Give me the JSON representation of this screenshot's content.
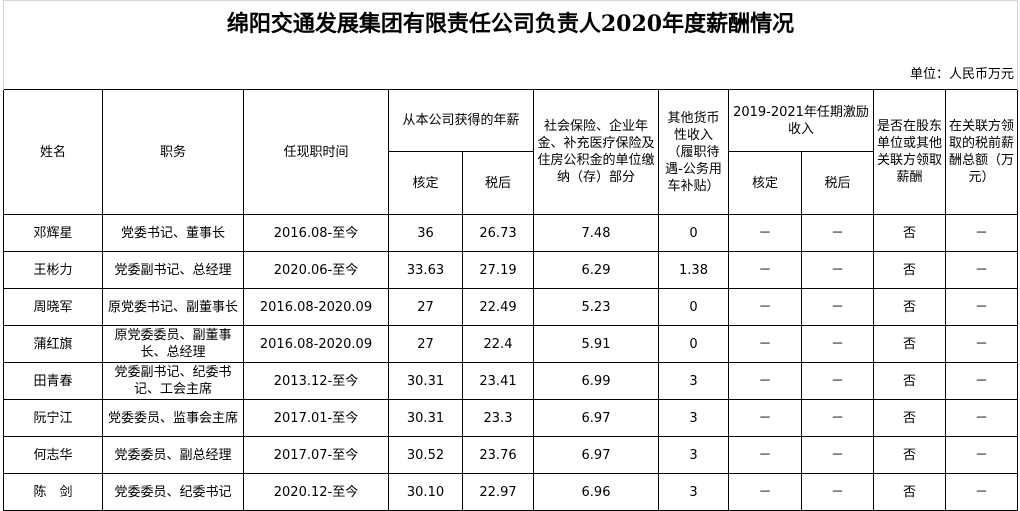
{
  "title": "绵阳交通发展集团有限责任公司负责人2020年度薪酬情况",
  "unit": "单位：人民币万元",
  "header": {
    "top": [
      "姓名",
      "职务",
      "任现职时间",
      "从本公司获得的年薪",
      "社会保险、企业年金、补充医疗保险及住房公积金的单位缴纳（存）部分",
      "其他货币性收入（履职待遇-公务用车补贴）",
      "2019-2021年任期激励收入",
      "是否在股东单位或其他关联方领取薪酬",
      "在关联方领取的税前薪酬总额（万元）"
    ],
    "sub": [
      "核定",
      "税后",
      "核定",
      "税后"
    ]
  },
  "rows": [
    [
      "邓辉星",
      "党委书记、董事长",
      "2016.08-至今",
      "36",
      "26.73",
      "7.48",
      "0",
      "－",
      "－",
      "否",
      "－"
    ],
    [
      "王彬力",
      "党委副书记、总经理",
      "2020.06-至今",
      "33.63",
      "27.19",
      "6.29",
      "1.38",
      "－",
      "－",
      "否",
      "－"
    ],
    [
      "周晓军",
      "原党委书记、副董事长",
      "2016.08-2020.09",
      "27",
      "22.49",
      "5.23",
      "0",
      "－",
      "－",
      "否",
      "－"
    ],
    [
      "蒲红旗",
      "原党委委员、副董事长、总经理",
      "2016.08-2020.09",
      "27",
      "22.4",
      "5.91",
      "0",
      "－",
      "－",
      "否",
      "－"
    ],
    [
      "田青春",
      "党委副书记、纪委书记、工会主席",
      "2013.12-至今",
      "30.31",
      "23.41",
      "6.99",
      "3",
      "－",
      "－",
      "否",
      "－"
    ],
    [
      "阮宁江",
      "党委委员、监事会主席",
      "2017.01-至今",
      "30.31",
      "23.3",
      "6.97",
      "3",
      "－",
      "－",
      "否",
      "－"
    ],
    [
      "何志华",
      "党委委员、副总经理",
      "2017.07-至今",
      "30.52",
      "23.76",
      "6.97",
      "3",
      "－",
      "－",
      "否",
      "－"
    ],
    [
      "陈　剑",
      "党委委员、纪委书记",
      "2020.12-至今",
      "30.10",
      "22.97",
      "6.96",
      "3",
      "－",
      "－",
      "否",
      "－"
    ]
  ]
}
